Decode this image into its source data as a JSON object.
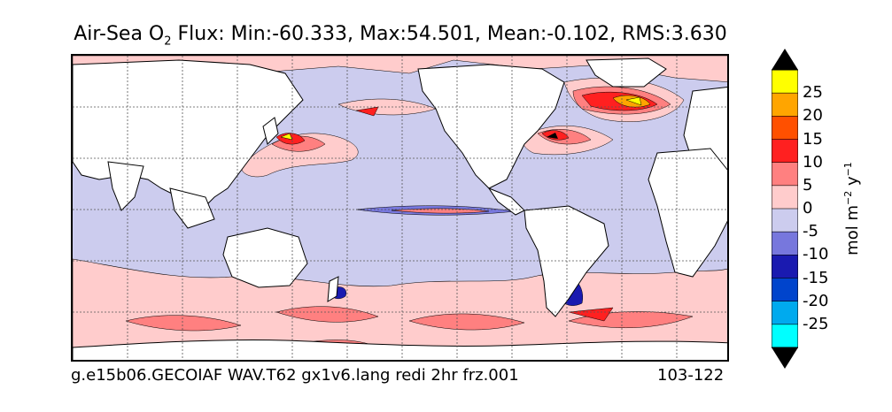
{
  "title": {
    "prefix": "Air-Sea O",
    "subscript": "2",
    "suffix": " Flux: Min:-60.333, Max:54.501, Mean:-0.102, RMS:3.630"
  },
  "footer": {
    "case_name": "g.e15b06.GECOIAF WAV.T62 gx1v6.lang redi 2hr frz.001",
    "years": "103-122"
  },
  "colorbar": {
    "label_base": "mol m",
    "label_exp1": "−2",
    "label_mid": " y",
    "label_exp2": "−1",
    "ticks": [
      "25",
      "20",
      "15",
      "10",
      "5",
      "0",
      "-5",
      "-10",
      "-15",
      "-20",
      "-25"
    ],
    "colors": [
      "#ffff00",
      "#ffa500",
      "#ff5000",
      "#ff2020",
      "#ff8080",
      "#ffcccc",
      "#ccccee",
      "#7777dd",
      "#1a1ab0",
      "#0044cc",
      "#00aaee",
      "#00ffff"
    ],
    "extend_top_color": "#000000",
    "extend_bottom_color": "#000000"
  },
  "map": {
    "ocean_color": "#ccccee",
    "land_color": "#ffffff",
    "coastline_color": "#000000",
    "grid": true,
    "grid_style": "dotted"
  }
}
